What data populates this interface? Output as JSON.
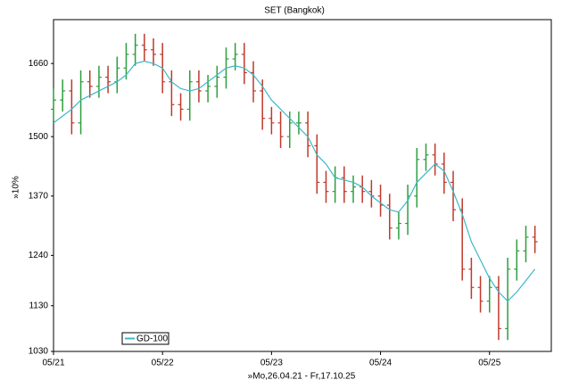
{
  "chart_data": {
    "type": "ohlc",
    "title": "SET (Bangkok)",
    "y_label": "»10%",
    "x_label": "»Mo,26.04.21 - Fr,17.10.25",
    "x": [
      0,
      1,
      2,
      3,
      4,
      5,
      6,
      7,
      8,
      9,
      10,
      11,
      12,
      13,
      14,
      15,
      16,
      17,
      18,
      19,
      20,
      21,
      22,
      23,
      24,
      25,
      26,
      27,
      28,
      29,
      30,
      31,
      32,
      33,
      34,
      35,
      36,
      37,
      38,
      39,
      40,
      41,
      42,
      43,
      44,
      45,
      46,
      47,
      48,
      49,
      50,
      51,
      52,
      53
    ],
    "open": [
      1560,
      1580,
      1600,
      1530,
      1620,
      1610,
      1630,
      1620,
      1650,
      1680,
      1700,
      1690,
      1680,
      1620,
      1570,
      1560,
      1620,
      1600,
      1610,
      1630,
      1670,
      1680,
      1640,
      1600,
      1540,
      1530,
      1500,
      1530,
      1530,
      1480,
      1400,
      1380,
      1410,
      1380,
      1390,
      1380,
      1370,
      1350,
      1300,
      1310,
      1370,
      1450,
      1460,
      1440,
      1400,
      1340,
      1210,
      1170,
      1140,
      1170,
      1080,
      1210,
      1250,
      1280
    ],
    "high": [
      1605,
      1625,
      1625,
      1645,
      1645,
      1655,
      1655,
      1675,
      1705,
      1725,
      1725,
      1715,
      1705,
      1645,
      1595,
      1645,
      1645,
      1635,
      1655,
      1695,
      1705,
      1705,
      1665,
      1625,
      1565,
      1555,
      1555,
      1555,
      1555,
      1505,
      1425,
      1435,
      1435,
      1415,
      1415,
      1405,
      1395,
      1375,
      1335,
      1395,
      1475,
      1485,
      1485,
      1465,
      1425,
      1365,
      1235,
      1195,
      1195,
      1195,
      1235,
      1275,
      1305,
      1305
    ],
    "low": [
      1535,
      1555,
      1505,
      1505,
      1585,
      1585,
      1595,
      1595,
      1625,
      1655,
      1665,
      1655,
      1595,
      1545,
      1535,
      1535,
      1575,
      1575,
      1585,
      1605,
      1645,
      1615,
      1575,
      1515,
      1505,
      1475,
      1475,
      1505,
      1455,
      1375,
      1355,
      1355,
      1355,
      1355,
      1355,
      1345,
      1325,
      1275,
      1275,
      1285,
      1345,
      1425,
      1415,
      1375,
      1315,
      1185,
      1145,
      1115,
      1115,
      1055,
      1055,
      1185,
      1225,
      1245
    ],
    "close": [
      1580,
      1600,
      1530,
      1620,
      1610,
      1630,
      1620,
      1650,
      1680,
      1700,
      1690,
      1680,
      1620,
      1570,
      1560,
      1620,
      1600,
      1610,
      1630,
      1670,
      1680,
      1640,
      1600,
      1540,
      1530,
      1500,
      1530,
      1530,
      1480,
      1400,
      1380,
      1410,
      1380,
      1390,
      1380,
      1370,
      1350,
      1300,
      1310,
      1370,
      1450,
      1460,
      1440,
      1400,
      1340,
      1210,
      1170,
      1140,
      1170,
      1080,
      1210,
      1250,
      1280,
      1270
    ],
    "up_color": "#2e9e3e",
    "down_color": "#c0392b",
    "series": [
      {
        "name": "GD-100",
        "color": "#3cb8c8",
        "values": [
          1530,
          1545,
          1560,
          1580,
          1590,
          1600,
          1610,
          1620,
          1635,
          1660,
          1665,
          1660,
          1650,
          1620,
          1605,
          1600,
          1605,
          1620,
          1635,
          1650,
          1655,
          1650,
          1635,
          1610,
          1580,
          1560,
          1540,
          1520,
          1500,
          1460,
          1440,
          1410,
          1405,
          1400,
          1390,
          1370,
          1355,
          1340,
          1335,
          1360,
          1400,
          1420,
          1440,
          1425,
          1380,
          1330,
          1270,
          1230,
          1190,
          1160,
          1140,
          1160,
          1185,
          1210
        ]
      }
    ],
    "xlim": [
      0,
      54.8
    ],
    "xticks": [
      {
        "value": 0,
        "label": "05/21"
      },
      {
        "value": 12,
        "label": "05/22"
      },
      {
        "value": 24,
        "label": "05/23"
      },
      {
        "value": 36,
        "label": "05/24"
      },
      {
        "value": 48,
        "label": "05/25"
      }
    ],
    "ylim": [
      1030,
      1756
    ],
    "yticks": [
      1030,
      1130,
      1240,
      1370,
      1500,
      1660
    ],
    "grid": false,
    "legend": "bottom-left"
  }
}
